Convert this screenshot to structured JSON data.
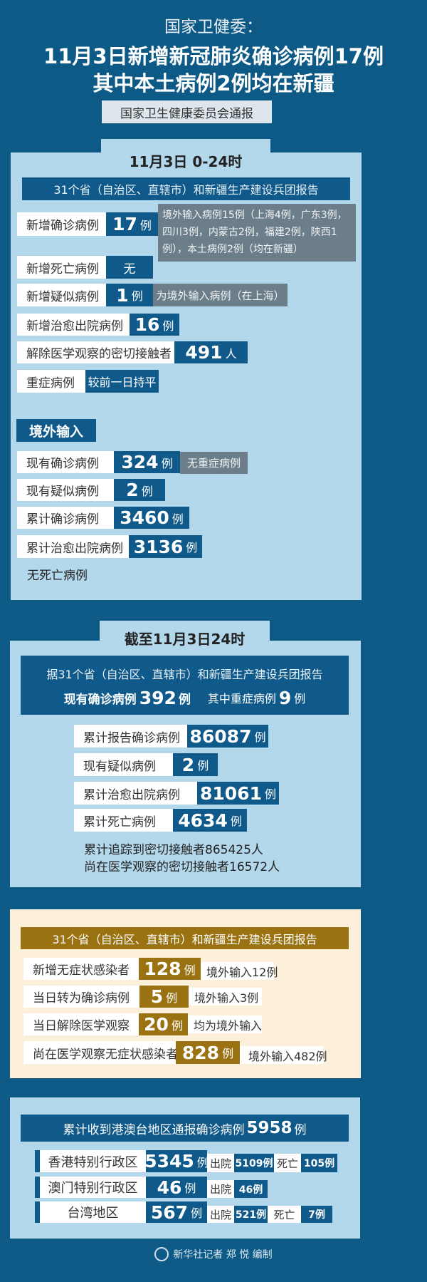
{
  "header": {
    "source": "国家卫健委：",
    "title_line1": "11月3日新增新冠肺炎确诊病例17例",
    "title_line2": "其中本土病例2例均在新疆",
    "subtitle": "国家卫生健康委员会通报"
  },
  "daily": {
    "tab": "11月3日  0-24时",
    "band": "31个省（自治区、直辖市）和新疆生产建设兵团报告",
    "rows": [
      {
        "label": "新增确诊病例",
        "value": "17",
        "unit": "例",
        "note": "境外输入病例15例（上海4例，广东3例，四川3例，内蒙古2例，福建2例，陕西1例），本土病例2例（均在新疆）"
      },
      {
        "label": "新增死亡病例",
        "value": "无",
        "unit": ""
      },
      {
        "label": "新增疑似病例",
        "value": "1",
        "unit": "例",
        "note": "为境外输入病例（在上海）"
      },
      {
        "label": "新增治愈出院病例",
        "value": "16",
        "unit": "例"
      },
      {
        "label": "解除医学观察的密切接触者",
        "value": "491",
        "unit": "人"
      },
      {
        "label": "重症病例",
        "value": "较前一日持平",
        "unit": ""
      }
    ],
    "imported": {
      "title": "境外输入",
      "rows": [
        {
          "label": "现有确诊病例",
          "value": "324",
          "unit": "例",
          "note": "无重症病例"
        },
        {
          "label": "现有疑似病例",
          "value": "2",
          "unit": "例"
        },
        {
          "label": "累计确诊病例",
          "value": "3460",
          "unit": "例"
        },
        {
          "label": "累计治愈出院病例",
          "value": "3136",
          "unit": "例"
        }
      ],
      "footer": "无死亡病例"
    }
  },
  "cumulative": {
    "tab": "截至11月3日24时",
    "band": "据31个省（自治区、直辖市）和新疆生产建设兵团报告",
    "current_label": "现有确诊病例",
    "current_value": "392",
    "current_unit": "例",
    "severe_label": "其中重症病例",
    "severe_value": "9",
    "severe_unit": "例",
    "rows": [
      {
        "label": "累计报告确诊病例",
        "value": "86087",
        "unit": "例"
      },
      {
        "label": "现有疑似病例",
        "value": "2",
        "unit": "例"
      },
      {
        "label": "累计治愈出院病例",
        "value": "81061",
        "unit": "例"
      },
      {
        "label": "累计死亡病例",
        "value": "4634",
        "unit": "例"
      }
    ],
    "contacts_traced": "累计追踪到密切接触者865425人",
    "contacts_observed": "尚在医学观察的密切接触者16572人"
  },
  "asymptomatic": {
    "band": "31个省（自治区、直辖市）和新疆生产建设兵团报告",
    "rows": [
      {
        "label": "新增无症状感染者",
        "value": "128",
        "unit": "例",
        "note": "境外输入12例"
      },
      {
        "label": "当日转为确诊病例",
        "value": "5",
        "unit": "例",
        "note": "境外输入3例"
      },
      {
        "label": "当日解除医学观察",
        "value": "20",
        "unit": "例",
        "note": "均为境外输入"
      },
      {
        "label": "尚在医学观察无症状感染者",
        "value": "828",
        "unit": "例",
        "note": "境外输入482例"
      }
    ]
  },
  "hmt": {
    "band_text": "累计收到港澳台地区通报确诊病例",
    "band_value": "5958",
    "band_unit": "例",
    "discharged_label": "出院",
    "death_label": "死亡",
    "rows": [
      {
        "region": "香港特别行政区",
        "value": "5345",
        "unit": "例",
        "discharged": "5109例",
        "deaths": "105例"
      },
      {
        "region": "澳门特别行政区",
        "value": "46",
        "unit": "例",
        "discharged": "46例"
      },
      {
        "region": "台湾地区",
        "value": "567",
        "unit": "例",
        "discharged": "521例",
        "deaths": "7例"
      }
    ]
  },
  "credit": "新华社记者 郑 悦 编制",
  "colors": {
    "background": "#0d5a87",
    "panel": "#b3d8ec",
    "box": "#0f5a8a",
    "note": "#6c7e89",
    "gold": "#9a7212",
    "cream": "#fdf0da"
  }
}
